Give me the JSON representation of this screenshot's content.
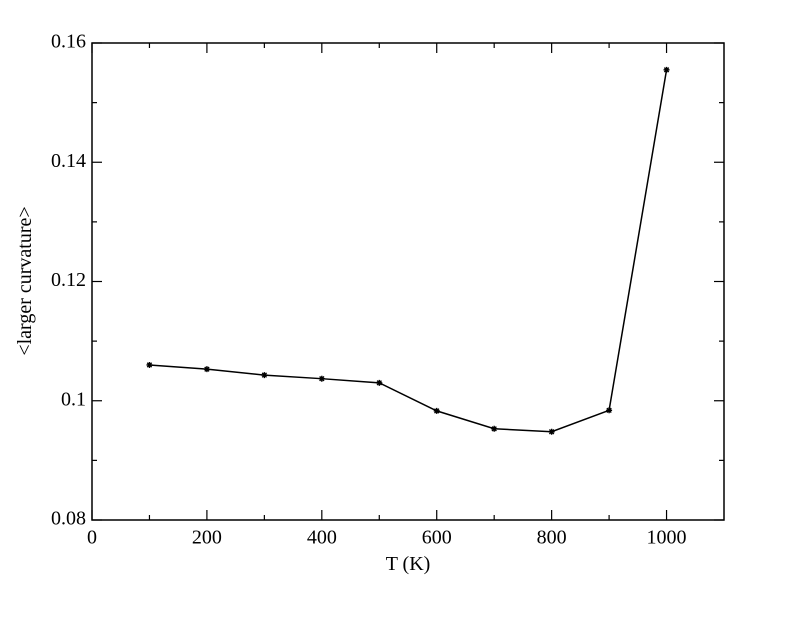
{
  "chart_data": {
    "type": "line",
    "x_label": "T (K)",
    "y_label": "<larger curvature>",
    "x": [
      100,
      200,
      300,
      400,
      500,
      600,
      700,
      800,
      900,
      1000
    ],
    "series": [
      {
        "color": "#000000",
        "values": [
          0.106,
          0.1053,
          0.1043,
          0.1037,
          0.103,
          0.0983,
          0.0953,
          0.0948,
          0.0984,
          0.1555
        ]
      }
    ],
    "xlim": [
      0,
      1100
    ],
    "ylim": [
      0.08,
      0.16
    ],
    "xticks": [
      0,
      200,
      400,
      600,
      800,
      1000
    ],
    "yticks": [
      0.08,
      0.1,
      0.12,
      0.14,
      0.16
    ],
    "xminorticks": [
      100,
      300,
      500,
      700,
      900
    ],
    "yminorticks": [
      0.09,
      0.11,
      0.13,
      0.15
    ],
    "grid": false
  }
}
